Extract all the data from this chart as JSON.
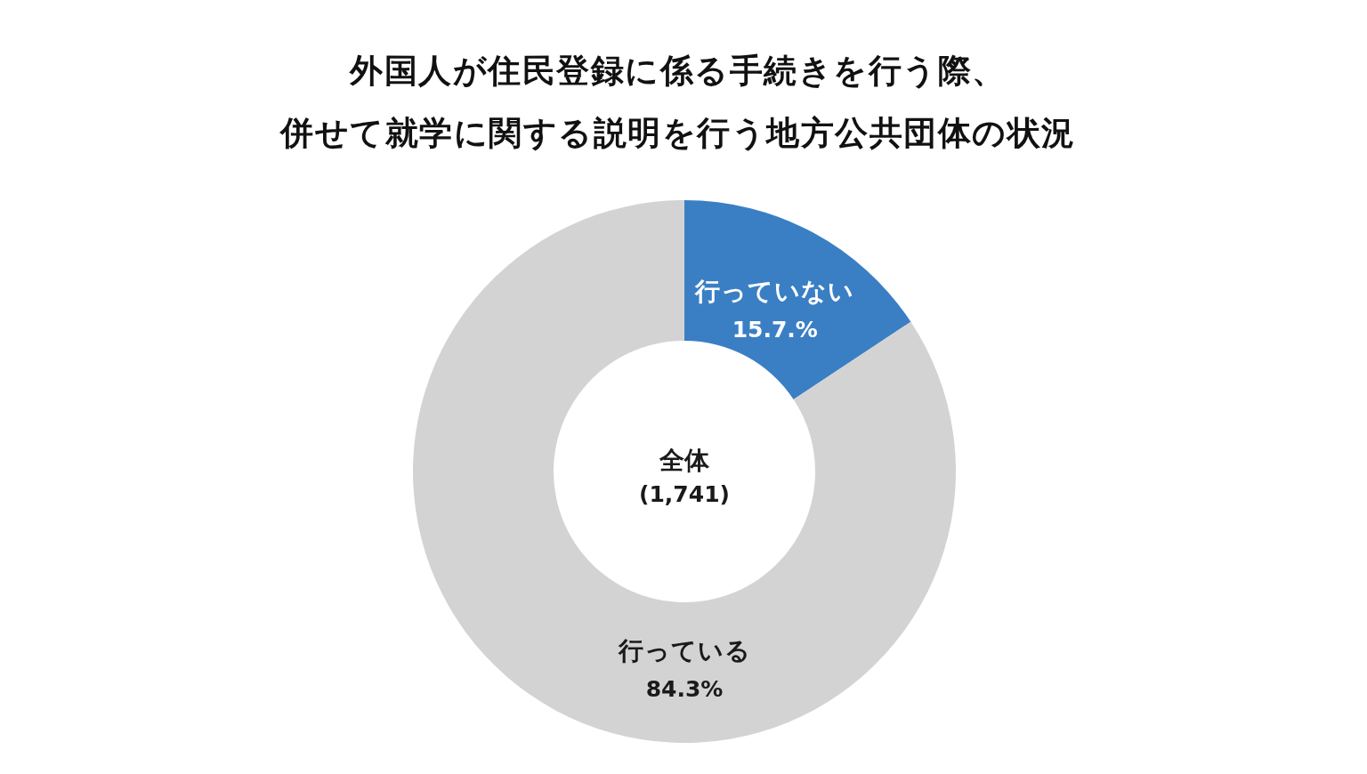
{
  "chart_data": {
    "type": "donut",
    "title": "外国人が住民登録に係る手続きを行う際、併せて就学に関する説明を行う地方公共団体の状況",
    "categories": [
      "行っていない",
      "行っている"
    ],
    "values": [
      15.7,
      84.3
    ],
    "colors": [
      "#3a7fc4",
      "#d3d3d3"
    ],
    "value_labels": [
      "15.7.%",
      "84.3%"
    ],
    "annotations": [
      "全体",
      "(1,741)"
    ]
  }
}
